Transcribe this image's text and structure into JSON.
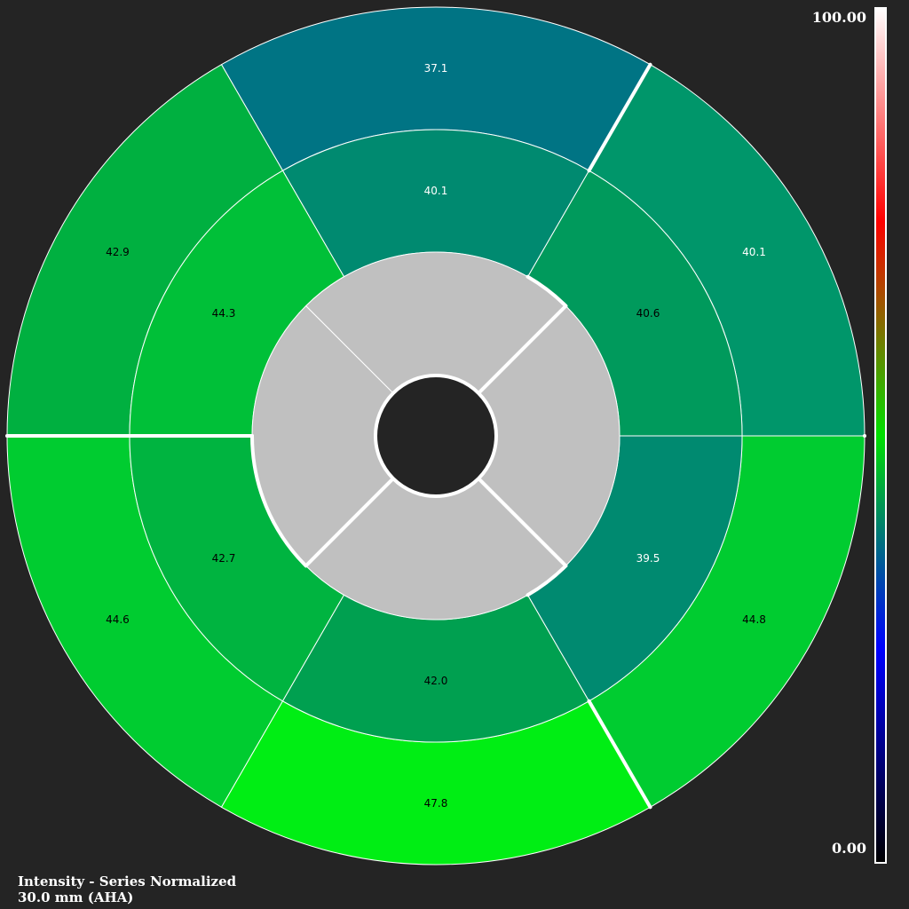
{
  "chart_data": {
    "type": "bullseye",
    "standard": "AHA",
    "colorbar": {
      "max_label": "100.00",
      "min_label": "0.00",
      "range": [
        0,
        100
      ],
      "gradient": [
        "#000000",
        "#0000ff",
        "#00e000",
        "#ff0000",
        "#ffffff"
      ]
    },
    "rings": [
      {
        "name": "basal",
        "segments": [
          {
            "value": "40.1",
            "color": "#00966a",
            "text_color": "#ffffff"
          },
          {
            "value": "37.1",
            "color": "#007484",
            "text_color": "#ffffff"
          },
          {
            "value": "42.9",
            "color": "#00b040",
            "text_color": "#000000"
          },
          {
            "value": "44.6",
            "color": "#00cc30",
            "text_color": "#000000"
          },
          {
            "value": "47.8",
            "color": "#00ee14",
            "text_color": "#000000"
          },
          {
            "value": "44.8",
            "color": "#00cc30",
            "text_color": "#000000"
          }
        ]
      },
      {
        "name": "mid",
        "segments": [
          {
            "value": "40.6",
            "color": "#009a5c",
            "text_color": "#000000"
          },
          {
            "value": "40.1",
            "color": "#008a70",
            "text_color": "#ffffff"
          },
          {
            "value": "44.3",
            "color": "#00c038",
            "text_color": "#000000"
          },
          {
            "value": "42.7",
            "color": "#00b440",
            "text_color": "#000000"
          },
          {
            "value": "42.0",
            "color": "#00a050",
            "text_color": "#000000"
          },
          {
            "value": "39.5",
            "color": "#008a70",
            "text_color": "#ffffff"
          }
        ]
      },
      {
        "name": "apical",
        "segments": [
          {
            "value": "",
            "color": "#c0c0c0"
          },
          {
            "value": "",
            "color": "#c0c0c0"
          },
          {
            "value": "",
            "color": "#c0c0c0"
          },
          {
            "value": "",
            "color": "#c0c0c0"
          }
        ]
      }
    ]
  },
  "footer": {
    "line1": "Intensity - Series Normalized",
    "line2": "30.0 mm (AHA)"
  }
}
